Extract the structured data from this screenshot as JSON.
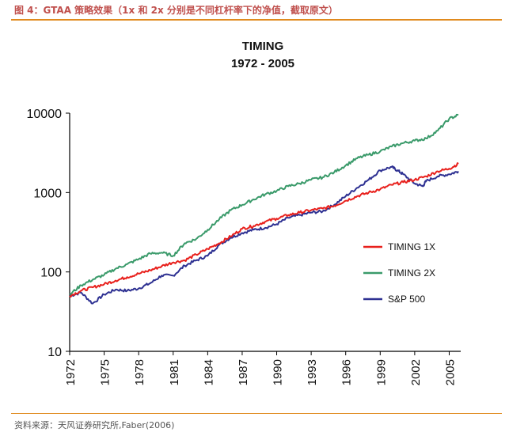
{
  "header": {
    "caption": "图 4：GTAA 策略效果（1x 和 2x 分别是不同杠杆率下的净值，截取原文）"
  },
  "footer": {
    "source": "资料来源：天风证券研究所,Faber(2006)"
  },
  "colors": {
    "caption": "#c0504d",
    "rule": "#e08a1e",
    "timing1x": "#e8201c",
    "timing2x": "#3a9a6a",
    "sp500": "#2e3192"
  },
  "chart_data": {
    "type": "line",
    "title": "TIMING",
    "subtitle": "1972 - 2005",
    "xlabel": "",
    "ylabel": "",
    "y_scale": "log",
    "ylim": [
      10,
      10000
    ],
    "xlim": [
      1972,
      2006
    ],
    "y_ticks": [
      "10",
      "100",
      "1000",
      "10000"
    ],
    "x_ticks": [
      "1972",
      "1975",
      "1978",
      "1981",
      "1984",
      "1987",
      "1990",
      "1993",
      "1996",
      "1999",
      "2002",
      "2005"
    ],
    "legend_position": "right-middle",
    "grid": false,
    "series": [
      {
        "name": "TIMING 1X",
        "x": [
          1972,
          1973,
          1974,
          1975,
          1976,
          1977,
          1978,
          1979,
          1980,
          1981,
          1982,
          1983,
          1984,
          1985,
          1986,
          1987,
          1988,
          1989,
          1990,
          1991,
          1992,
          1993,
          1994,
          1995,
          1996,
          1997,
          1998,
          1999,
          2000,
          2001,
          2002,
          2003,
          2004,
          2005,
          2005.8
        ],
        "y": [
          50,
          58,
          64,
          70,
          78,
          86,
          95,
          105,
          118,
          132,
          140,
          165,
          195,
          230,
          280,
          350,
          380,
          430,
          470,
          520,
          560,
          600,
          630,
          680,
          790,
          900,
          1000,
          1100,
          1250,
          1350,
          1450,
          1600,
          1850,
          2000,
          2300
        ]
      },
      {
        "name": "TIMING 2X",
        "x": [
          1972,
          1973,
          1974,
          1975,
          1976,
          1977,
          1978,
          1979,
          1980,
          1981,
          1982,
          1983,
          1984,
          1985,
          1986,
          1987,
          1988,
          1989,
          1990,
          1991,
          1992,
          1993,
          1994,
          1995,
          1996,
          1997,
          1998,
          1999,
          2000,
          2001,
          2002,
          2003,
          2004,
          2005,
          2005.8
        ],
        "y": [
          52,
          68,
          80,
          92,
          110,
          125,
          145,
          170,
          175,
          160,
          230,
          260,
          340,
          460,
          600,
          700,
          820,
          950,
          1050,
          1200,
          1300,
          1450,
          1550,
          1800,
          2200,
          2700,
          3000,
          3300,
          3800,
          4200,
          4500,
          4800,
          6000,
          8500,
          9500
        ]
      },
      {
        "name": "S&P 500",
        "x": [
          1972,
          1973,
          1974,
          1975,
          1976,
          1977,
          1978,
          1979,
          1980,
          1981,
          1982,
          1983,
          1984,
          1985,
          1986,
          1987,
          1988,
          1989,
          1990,
          1991,
          1992,
          1993,
          1994,
          1995,
          1996,
          1997,
          1998,
          1999,
          2000,
          2000.5,
          2001,
          2002,
          2002.7,
          2003,
          2004,
          2005,
          2005.8
        ],
        "y": [
          50,
          55,
          40,
          52,
          60,
          58,
          62,
          72,
          90,
          90,
          120,
          140,
          160,
          220,
          270,
          310,
          340,
          360,
          400,
          480,
          520,
          560,
          580,
          700,
          900,
          1150,
          1450,
          1900,
          2100,
          1900,
          1700,
          1300,
          1200,
          1400,
          1600,
          1700,
          1850
        ]
      }
    ]
  }
}
